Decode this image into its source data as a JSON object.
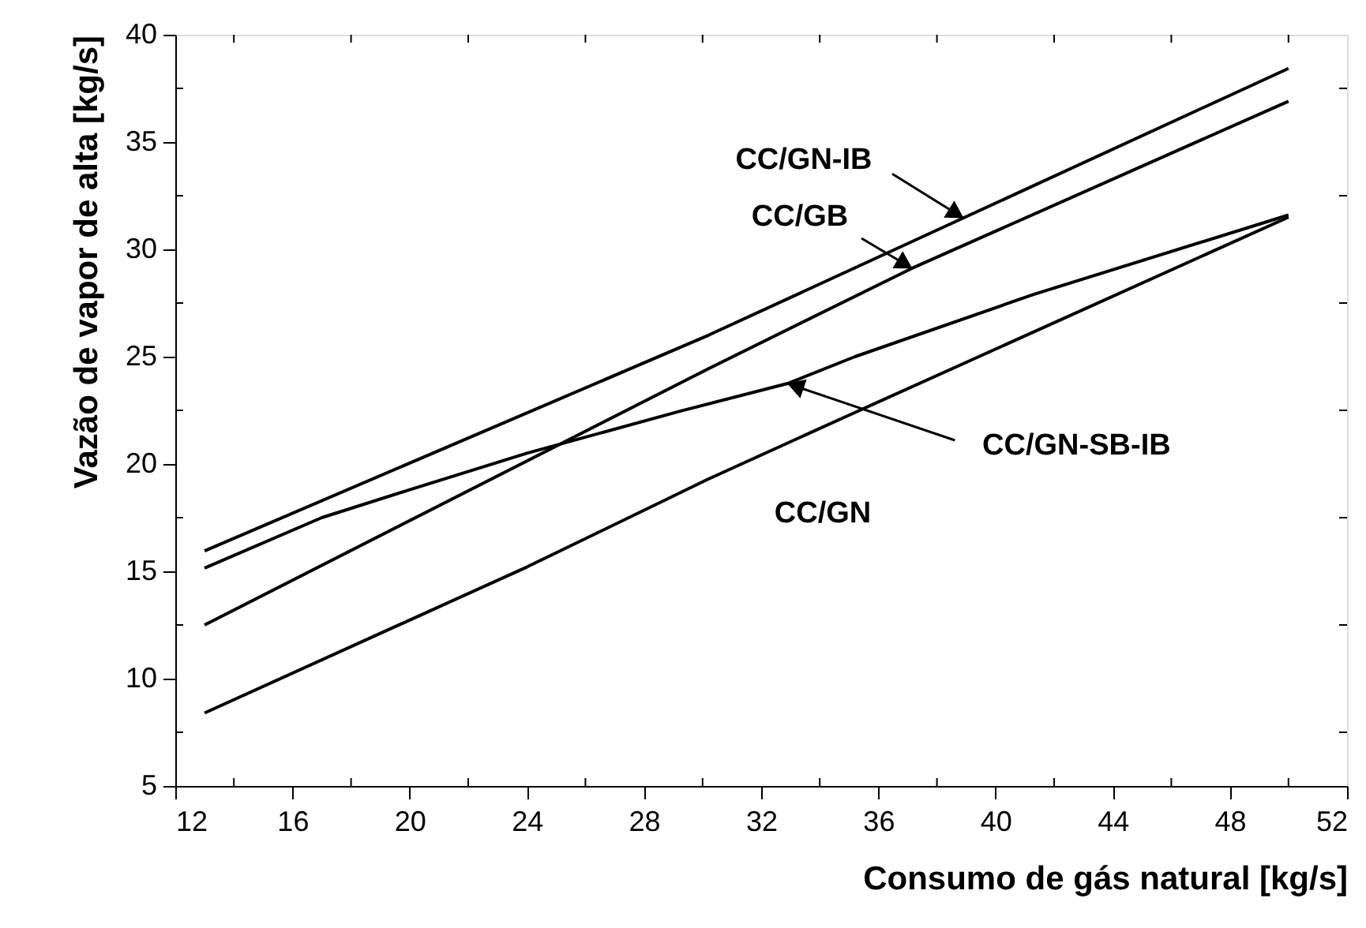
{
  "chart_data": {
    "type": "line",
    "xlabel": "Consumo de gás natural [kg/s]",
    "ylabel": "Vazão de vapor de alta [kg/s]",
    "xlim": [
      12,
      52
    ],
    "ylim": [
      5,
      40
    ],
    "xticks": [
      12,
      {
        "value": 14,
        "label": null
      },
      16,
      {
        "value": 18,
        "label": null
      },
      20,
      {
        "value": 22,
        "label": null
      },
      24,
      {
        "value": 26,
        "label": null
      },
      28,
      {
        "value": 30,
        "label": null
      },
      32,
      {
        "value": 34,
        "label": null
      },
      36,
      {
        "value": 38,
        "label": null
      },
      40,
      {
        "value": 42,
        "label": null
      },
      44,
      {
        "value": 46,
        "label": null
      },
      48,
      {
        "value": 50,
        "label": null
      },
      52
    ],
    "yticks": [
      5,
      {
        "value": 7.5,
        "label": null
      },
      10,
      {
        "value": 12.5,
        "label": null
      },
      15,
      {
        "value": 17.5,
        "label": null
      },
      20,
      {
        "value": 22.5,
        "label": null
      },
      25,
      {
        "value": 27.5,
        "label": null
      },
      30,
      {
        "value": 32.5,
        "label": null
      },
      35,
      {
        "value": 37.5,
        "label": null
      },
      40
    ],
    "series": [
      {
        "color": "#000000",
        "x": [
          13,
          30.2,
          38.9,
          50
        ],
        "values": [
          15.95,
          26.0,
          31.46,
          38.43
        ]
      },
      {
        "color": "#000000",
        "x": [
          13,
          30.2,
          37.15,
          50
        ],
        "values": [
          12.5,
          24.44,
          29.12,
          36.9
        ]
      },
      {
        "color": "#000000",
        "x": [
          13,
          17,
          20,
          24,
          29.2,
          32.9,
          35.2,
          41.3,
          50
        ],
        "values": [
          15.15,
          17.5,
          18.8,
          20.5,
          22.45,
          23.75,
          25.0,
          27.9,
          31.6
        ]
      },
      {
        "color": "#000000",
        "x": [
          13,
          24,
          30.2,
          35.2,
          50
        ],
        "values": [
          8.4,
          15.2,
          19.3,
          22.4,
          31.5
        ]
      }
    ],
    "annotations": [
      {
        "text": "CC/GN-IB",
        "x": 38.9,
        "y": 31.46
      },
      {
        "text": "CC/GB",
        "x": 37.15,
        "y": 29.12
      },
      {
        "text": "CC/GN-SB-IB",
        "x": 32.9,
        "y": 23.75
      },
      "CC/GN"
    ]
  }
}
